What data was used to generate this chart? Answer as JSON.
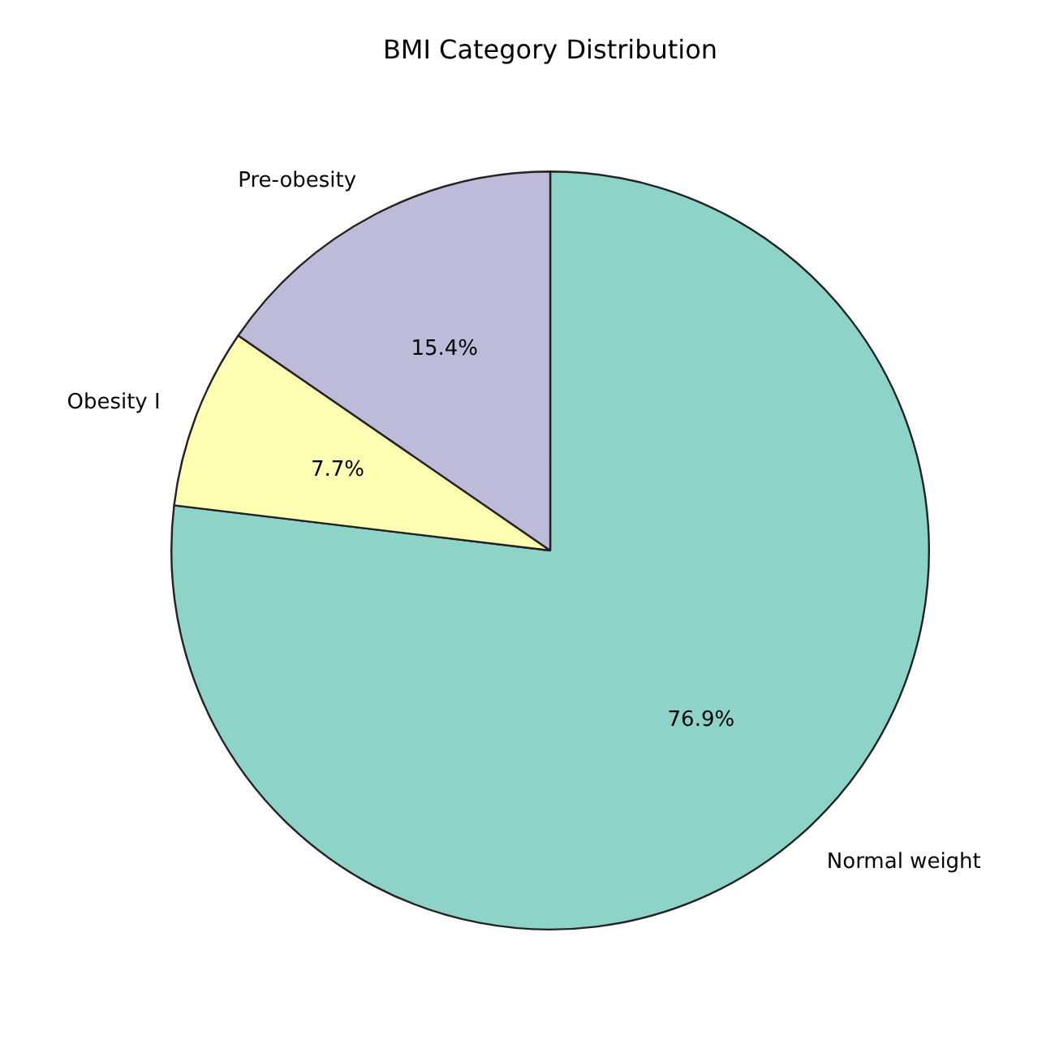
{
  "chart_data": {
    "type": "pie",
    "title": "BMI Category Distribution",
    "categories": [
      "Normal weight",
      "Obesity I",
      "Pre-obesity"
    ],
    "values": [
      76.9,
      7.7,
      15.4
    ],
    "colors": [
      "#8dd3c7",
      "#ffffb3",
      "#bebada"
    ],
    "value_labels": [
      "76.9%",
      "7.7%",
      "15.4%"
    ],
    "legend": false
  }
}
